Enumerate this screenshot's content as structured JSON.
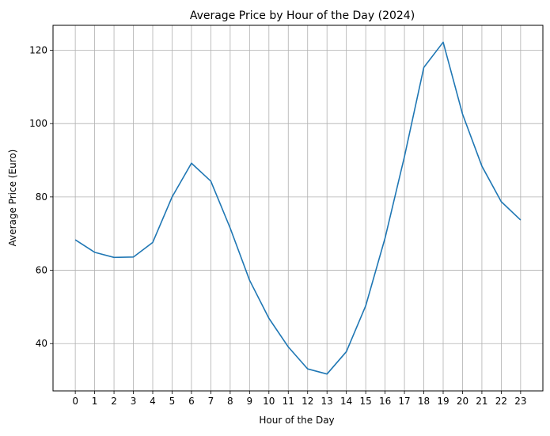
{
  "chart_data": {
    "type": "line",
    "title": "Average Price by Hour of the Day (2024)",
    "xlabel": "Hour of the Day",
    "ylabel": "Average Price (Euro)",
    "x": [
      0,
      1,
      2,
      3,
      4,
      5,
      6,
      7,
      8,
      9,
      10,
      11,
      12,
      13,
      14,
      15,
      16,
      17,
      18,
      19,
      20,
      21,
      22,
      23
    ],
    "series": [
      {
        "values": [
          68.3,
          64.9,
          63.5,
          63.6,
          67.6,
          80.0,
          89.2,
          84.3,
          71.5,
          57.3,
          46.9,
          39.1,
          33.1,
          31.7,
          37.8,
          50.3,
          68.8,
          91.0,
          115.3,
          122.2,
          102.6,
          88.4,
          78.7,
          73.7
        ],
        "color": "#1f77b4"
      }
    ],
    "xlim": [
      -1.15,
      24.15
    ],
    "ylim": [
      27.1,
      126.8
    ],
    "yticks": [
      40,
      60,
      80,
      100,
      120
    ],
    "grid": true,
    "grid_color": "#b0b0b0"
  }
}
